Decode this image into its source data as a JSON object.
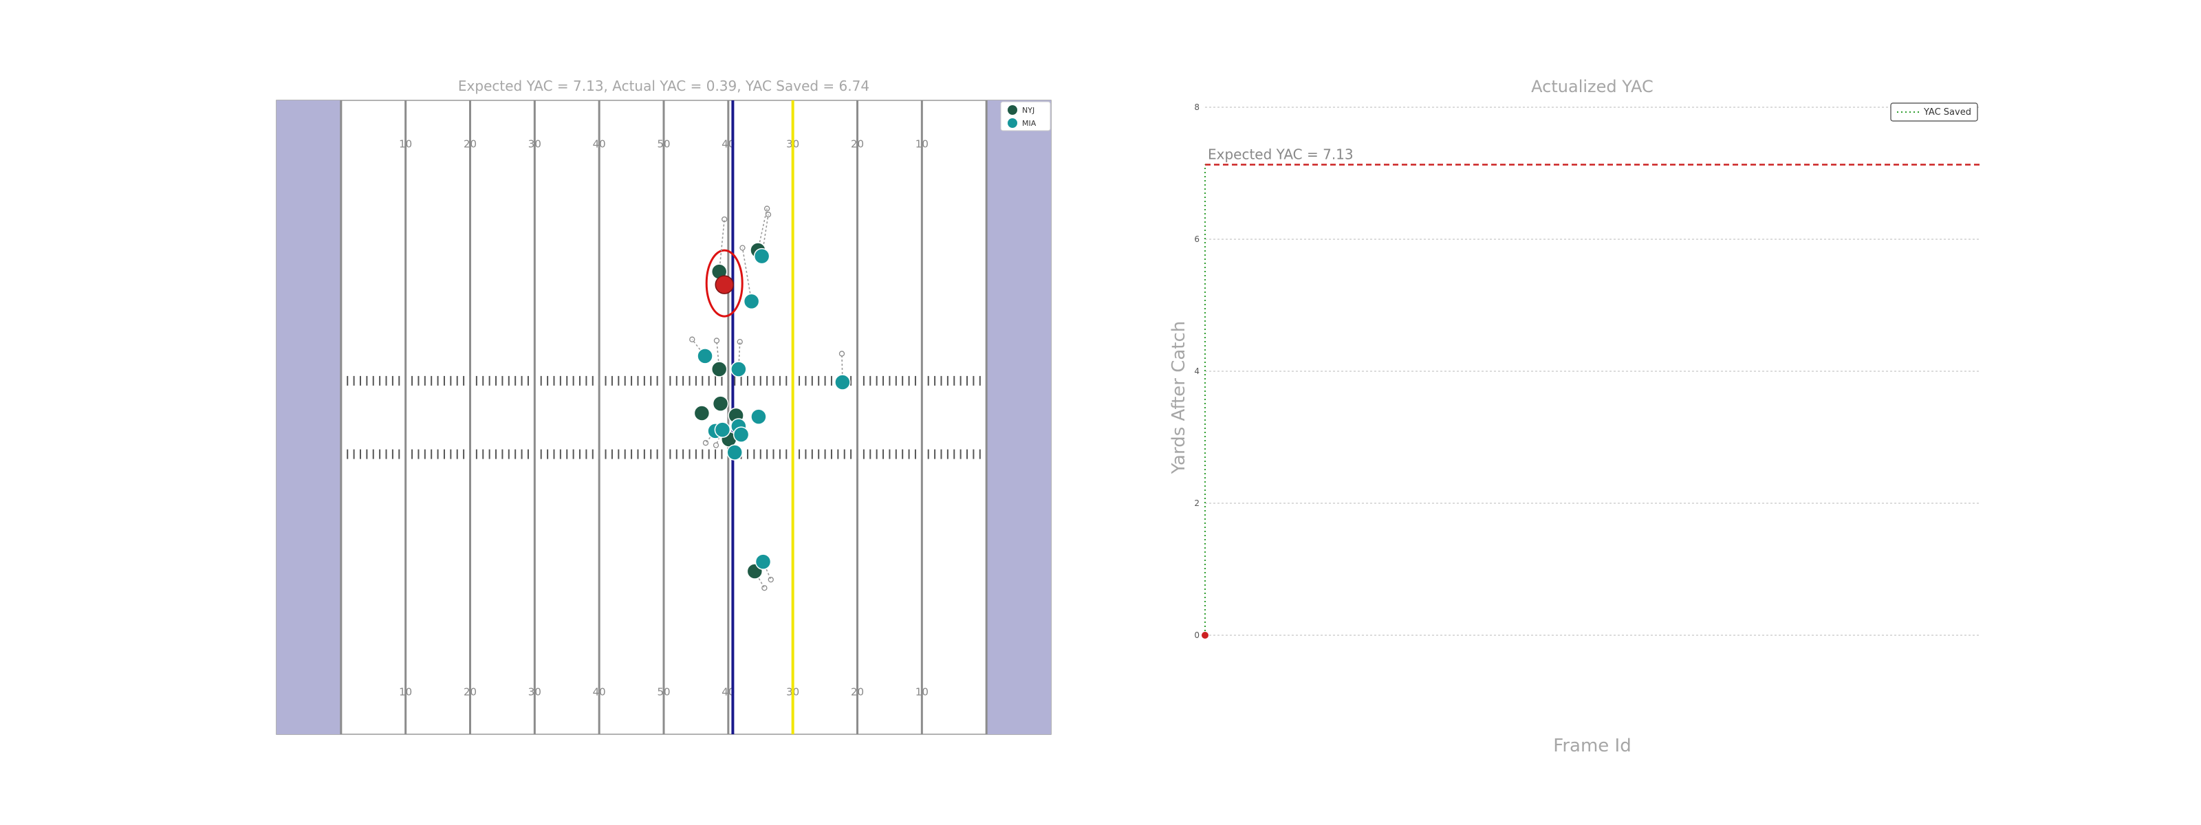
{
  "field_panel": {
    "title": "Expected YAC = 7.13, Actual YAC = 0.39, YAC Saved = 6.74",
    "yard_numbers_top": [
      "10",
      "20",
      "30",
      "40",
      "50",
      "40",
      "30",
      "20",
      "10"
    ],
    "yard_numbers_bottom": [
      "10",
      "20",
      "30",
      "40",
      "50",
      "40",
      "30",
      "20",
      "10"
    ],
    "legend": [
      {
        "label": "NYJ",
        "color": "#1f5a45"
      },
      {
        "label": "MIA",
        "color": "#16969a"
      }
    ],
    "colors": {
      "endzone": "#b2b2d6",
      "field": "#ffffff",
      "field_lines": "#8c8c8c",
      "line_of_scrimmage": "#1a1a8c",
      "first_down_line": "#f2e600",
      "ball_carrier": "#cc2222",
      "highlight_ring": "#dd1111"
    }
  },
  "chart_data": [
    {
      "type": "scatter",
      "title": "Expected YAC = 7.13, Actual YAC = 0.39, YAC Saved = 6.74",
      "xlabel": "",
      "ylabel": "",
      "x_unit": "yards from left end of the field image (0-120)",
      "y_unit": "yards from top sideline (0-53.3)",
      "xlim": [
        0,
        120
      ],
      "ylim": [
        0,
        53.3
      ],
      "line_of_scrimmage_x": 70.7,
      "first_down_x": 80,
      "series": [
        {
          "name": "NYJ",
          "color": "#1f5a45",
          "points": [
            {
              "x": 68.6,
              "y": 14.4,
              "jersey": "",
              "dx": 0.8,
              "dy": -4.4
            },
            {
              "x": 74.6,
              "y": 12.6,
              "jersey": "",
              "dx": 1.4,
              "dy": -3.5
            },
            {
              "x": 68.6,
              "y": 22.6,
              "jersey": "",
              "dx": -0.4,
              "dy": -2.4
            },
            {
              "x": 68.8,
              "y": 25.5,
              "jersey": "",
              "dx": 0,
              "dy": 0
            },
            {
              "x": 65.9,
              "y": 26.3,
              "jersey": "",
              "dx": 0,
              "dy": 0
            },
            {
              "x": 71.2,
              "y": 26.5,
              "jersey": "",
              "dx": 0,
              "dy": 0
            },
            {
              "x": 70.1,
              "y": 28.5,
              "jersey": "",
              "dx": 0,
              "dy": 0
            },
            {
              "x": 74.1,
              "y": 39.6,
              "jersey": "",
              "dx": 1.5,
              "dy": 1.4
            }
          ]
        },
        {
          "name": "MIA",
          "color": "#16969a",
          "points": [
            {
              "x": 75.2,
              "y": 13.1,
              "jersey": "",
              "dx": 1.0,
              "dy": -3.5
            },
            {
              "x": 73.6,
              "y": 16.9,
              "jersey": "",
              "dx": -1.4,
              "dy": -4.5
            },
            {
              "x": 66.4,
              "y": 21.5,
              "jersey": "",
              "dx": -2.0,
              "dy": -1.4
            },
            {
              "x": 71.6,
              "y": 22.6,
              "jersey": "",
              "dx": 0.2,
              "dy": -2.3
            },
            {
              "x": 87.7,
              "y": 23.7,
              "jersey": "",
              "dx": -0.1,
              "dy": -2.4
            },
            {
              "x": 74.7,
              "y": 26.6,
              "jersey": "",
              "dx": 0.3,
              "dy": -0.4
            },
            {
              "x": 71.6,
              "y": 27.4,
              "jersey": "",
              "dx": 0,
              "dy": 0
            },
            {
              "x": 68.0,
              "y": 27.8,
              "jersey": "",
              "dx": -1.5,
              "dy": 1.0
            },
            {
              "x": 69.1,
              "y": 27.7,
              "jersey": "",
              "dx": -1.0,
              "dy": 1.3
            },
            {
              "x": 72.0,
              "y": 28.1,
              "jersey": "",
              "dx": 0,
              "dy": 0
            },
            {
              "x": 71.0,
              "y": 29.6,
              "jersey": "",
              "dx": 0,
              "dy": 0
            },
            {
              "x": 75.4,
              "y": 38.8,
              "jersey": "",
              "dx": 1.2,
              "dy": 1.5
            }
          ]
        },
        {
          "name": "",
          "color": "#cc2222",
          "points": [
            {
              "x": 69.4,
              "y": 15.5,
              "jersey": "",
              "dx": 0,
              "dy": 0
            }
          ]
        }
      ]
    },
    {
      "type": "line",
      "title": "Actualized YAC",
      "xlabel": "Frame Id",
      "ylabel": "Yards After Catch",
      "ylim": [
        0,
        8
      ],
      "yticks": [
        0,
        2,
        4,
        6,
        8
      ],
      "grid": true,
      "legend_placement": "top-right",
      "expected_yac": 7.13,
      "expected_label": "Expected YAC = 7.13",
      "series": [
        {
          "name": "YAC Saved",
          "color": "#2e9e2e",
          "style": "dotted",
          "x": [
            0,
            0
          ],
          "y": [
            0,
            7.13
          ]
        },
        {
          "name": "",
          "color": "#cc2222",
          "style": "point",
          "x": [
            0
          ],
          "y": [
            0
          ]
        }
      ]
    }
  ]
}
